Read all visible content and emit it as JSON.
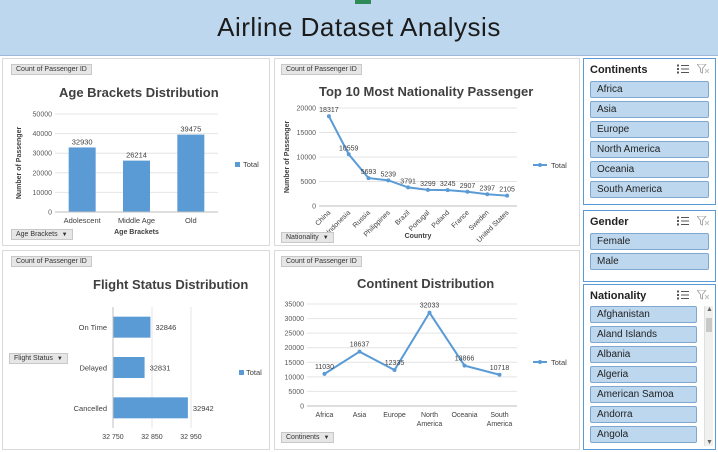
{
  "header": {
    "title": "Airline Dataset Analysis"
  },
  "charts": {
    "age": {
      "field_button": "Count of Passenger ID",
      "filter_button": "Age Brackets",
      "title": "Age Brackets Distribution",
      "ylabel": "Number of Passenger",
      "xlabel": "Age Brackets",
      "legend": "Total"
    },
    "nationality": {
      "field_button": "Count of Passenger ID",
      "filter_button": "Nationality",
      "title": "Top 10 Most Nationality Passenger",
      "ylabel": "Number of Passenger",
      "xlabel": "Country",
      "legend": "Total"
    },
    "flight": {
      "field_button": "Count of Passenger ID",
      "filter_button": "Flight Status",
      "title": "Flight Status Distribution",
      "legend": "Total"
    },
    "continent": {
      "field_button": "Count of Passenger ID",
      "filter_button": "Continents",
      "title": "Continent Distribution",
      "legend": "Total"
    }
  },
  "chart_data": [
    {
      "type": "bar",
      "title": "Age Brackets Distribution",
      "xlabel": "Age Brackets",
      "ylabel": "Number of Passenger",
      "categories": [
        "Adolescent",
        "Middle Age",
        "Old"
      ],
      "series": [
        {
          "name": "Total",
          "values": [
            32930,
            26214,
            39475
          ]
        }
      ],
      "ylim": [
        0,
        50000
      ],
      "yticks": [
        0,
        10000,
        20000,
        30000,
        40000,
        50000
      ],
      "color": "#5b9bd5"
    },
    {
      "type": "line",
      "title": "Top 10 Most Nationality Passenger",
      "xlabel": "Country",
      "ylabel": "Number of Passenger",
      "categories": [
        "China",
        "Indonesia",
        "Russia",
        "Philippines",
        "Brazil",
        "Portugal",
        "Poland",
        "France",
        "Sweden",
        "United States"
      ],
      "series": [
        {
          "name": "Total",
          "values": [
            18317,
            10559,
            5693,
            5239,
            3791,
            3299,
            3245,
            2907,
            2397,
            2105
          ]
        }
      ],
      "ylim": [
        0,
        20000
      ],
      "yticks": [
        0,
        5000,
        10000,
        15000,
        20000
      ],
      "color": "#5b9bd5"
    },
    {
      "type": "bar",
      "orientation": "horizontal",
      "title": "Flight Status Distribution",
      "categories": [
        "On Time",
        "Delayed",
        "Cancelled"
      ],
      "series": [
        {
          "name": "Total",
          "values": [
            32846,
            32831,
            32942
          ]
        }
      ],
      "xlim": [
        32750,
        32950
      ],
      "xticks": [
        32750,
        32850,
        32950
      ],
      "color": "#5b9bd5"
    },
    {
      "type": "line",
      "title": "Continent Distribution",
      "categories": [
        "Africa",
        "Asia",
        "Europe",
        "North America",
        "Oceania",
        "South America"
      ],
      "series": [
        {
          "name": "Total",
          "values": [
            11030,
            18637,
            12335,
            32033,
            13866,
            10718
          ]
        }
      ],
      "ylim": [
        0,
        35000
      ],
      "yticks": [
        0,
        5000,
        10000,
        15000,
        20000,
        25000,
        30000,
        35000
      ],
      "color": "#5b9bd5"
    }
  ],
  "slicers": {
    "continents": {
      "title": "Continents",
      "items": [
        "Africa",
        "Asia",
        "Europe",
        "North America",
        "Oceania",
        "South America"
      ]
    },
    "gender": {
      "title": "Gender",
      "items": [
        "Female",
        "Male"
      ]
    },
    "nationality": {
      "title": "Nationality",
      "items": [
        "Afghanistan",
        "Aland Islands",
        "Albania",
        "Algeria",
        "American Samoa",
        "Andorra",
        "Angola"
      ]
    }
  }
}
